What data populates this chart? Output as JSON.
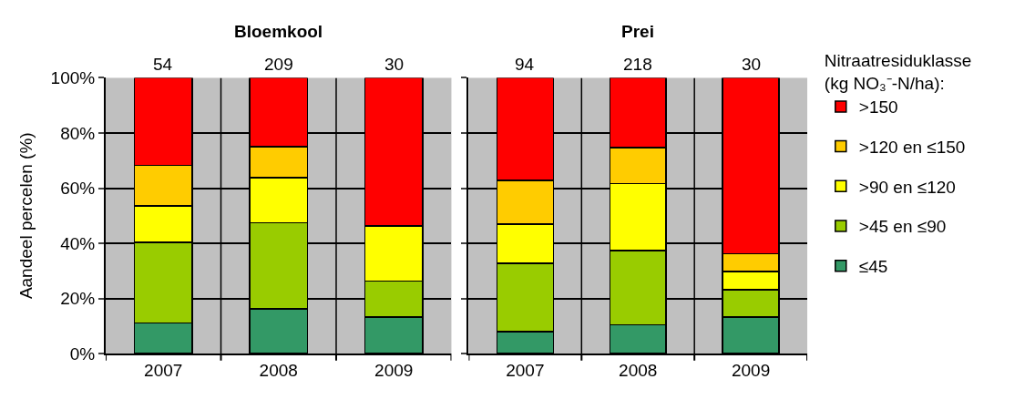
{
  "chart_data": [
    {
      "type": "bar",
      "title": "Bloemkool",
      "ylabel": "Aandeel percelen (%)",
      "categories": [
        "2007",
        "2008",
        "2009"
      ],
      "stacked": true,
      "grid": true,
      "legend": "right",
      "legend_title": "Nitraatresiduklasse\n(kg NO₃⁻-N/ha):",
      "annotations": [
        "54",
        "209",
        "30"
      ],
      "ylim": [
        0,
        100
      ],
      "yticks": [
        {
          "value": 0,
          "label": "0%"
        },
        {
          "value": 20,
          "label": "20%"
        },
        {
          "value": 40,
          "label": "40%"
        },
        {
          "value": 60,
          "label": "60%"
        },
        {
          "value": 80,
          "label": "80%"
        },
        {
          "value": 100,
          "label": "100%"
        }
      ],
      "series": [
        {
          "name": "≤45",
          "color": "#339966",
          "values": [
            11.1,
            16.2,
            13.3
          ]
        },
        {
          "name": ">45 en ≤90",
          "color": "#99cc00",
          "values": [
            29.3,
            31.3,
            13.0
          ]
        },
        {
          "name": ">90 en ≤120",
          "color": "#ffff00",
          "values": [
            13.1,
            16.3,
            20.0
          ]
        },
        {
          "name": ">120 en ≤150",
          "color": "#ffcc00",
          "values": [
            14.7,
            11.3,
            0
          ]
        },
        {
          "name": ">150",
          "color": "#ff0000",
          "values": [
            31.8,
            24.9,
            53.7
          ]
        }
      ]
    },
    {
      "type": "bar",
      "title": "Prei",
      "categories": [
        "2007",
        "2008",
        "2009"
      ],
      "stacked": true,
      "grid": true,
      "tick_labels": "x",
      "annotations": [
        "94",
        "218",
        "30"
      ],
      "ylim": [
        0,
        100
      ],
      "yticks": [
        {
          "value": 0,
          "label": null
        },
        {
          "value": 20,
          "label": null
        },
        {
          "value": 40,
          "label": null
        },
        {
          "value": 60,
          "label": null
        },
        {
          "value": 80,
          "label": null
        },
        {
          "value": 100,
          "label": null
        }
      ],
      "series": [
        {
          "color": "#339966",
          "values": [
            7.9,
            10.5,
            13.3
          ]
        },
        {
          "color": "#99cc00",
          "values": [
            24.9,
            26.9,
            9.9
          ]
        },
        {
          "color": "#ffff00",
          "values": [
            14.1,
            24.2,
            6.6
          ]
        },
        {
          "color": "#ffcc00",
          "values": [
            15.9,
            13.1,
            6.4
          ]
        },
        {
          "color": "#ff0000",
          "values": [
            37.2,
            25.3,
            63.8
          ]
        }
      ]
    }
  ]
}
